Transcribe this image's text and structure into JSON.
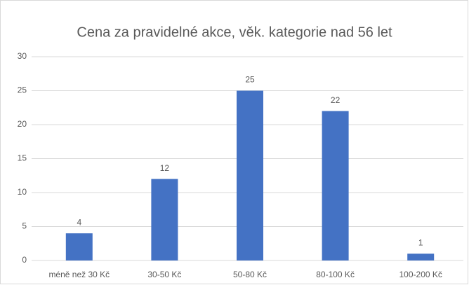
{
  "chart_data": {
    "type": "bar",
    "title": "Cena za pravidelné akce, věk. kategorie nad 56 let",
    "categories": [
      "méně než 30 Kč",
      "30-50 Kč",
      "50-80 Kč",
      "80-100 Kč",
      "100-200 Kč"
    ],
    "values": [
      4,
      12,
      25,
      22,
      1
    ],
    "color": "#4472c4",
    "ylim": [
      0,
      30
    ],
    "yticks": [
      0,
      5,
      10,
      15,
      20,
      25,
      30
    ],
    "grid": true,
    "data_labels": true
  }
}
